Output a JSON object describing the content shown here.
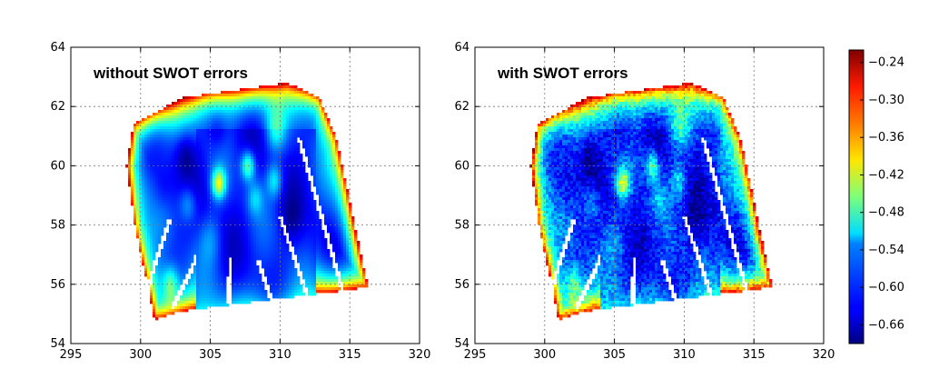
{
  "chart_data": [
    {
      "type": "heatmap",
      "title": "without SWOT errors",
      "noise": false,
      "xlim": [
        295,
        320
      ],
      "ylim": [
        54,
        64
      ],
      "xticks": [
        295,
        300,
        305,
        310,
        315,
        320
      ],
      "yticks": [
        54,
        56,
        58,
        60,
        62,
        64
      ],
      "grid": true,
      "value_range": [
        -0.69,
        -0.22
      ]
    },
    {
      "type": "heatmap",
      "title": "with SWOT errors",
      "noise": true,
      "xlim": [
        295,
        320
      ],
      "ylim": [
        54,
        64
      ],
      "xticks": [
        295,
        300,
        305,
        310,
        315,
        320
      ],
      "yticks": [
        54,
        56,
        58,
        60,
        62,
        64
      ],
      "grid": true,
      "value_range": [
        -0.69,
        -0.22
      ]
    }
  ],
  "colorbar": {
    "colormap": "jet",
    "min": -0.69,
    "max": -0.22,
    "ticks": [
      "−0.24",
      "−0.30",
      "−0.36",
      "−0.42",
      "−0.48",
      "−0.54",
      "−0.60",
      "−0.66"
    ],
    "tick_values": [
      -0.24,
      -0.3,
      -0.36,
      -0.42,
      -0.48,
      -0.54,
      -0.6,
      -0.66
    ]
  },
  "data_region": {
    "polygon": [
      [
        299.0,
        60.0
      ],
      [
        299.5,
        61.4
      ],
      [
        303.0,
        62.3
      ],
      [
        310.5,
        62.8
      ],
      [
        312.8,
        62.3
      ],
      [
        314.0,
        61.0
      ],
      [
        316.3,
        55.9
      ],
      [
        313.0,
        55.7
      ],
      [
        303.0,
        55.1
      ],
      [
        301.0,
        54.8
      ],
      [
        299.6,
        58.0
      ]
    ],
    "gaps": [
      [
        [
          302.1,
          58.2
        ],
        [
          300.3,
          55.6
        ]
      ],
      [
        [
          304.0,
          56.9
        ],
        [
          302.3,
          55.2
        ]
      ],
      [
        [
          306.4,
          56.9
        ],
        [
          306.3,
          55.3
        ]
      ],
      [
        [
          308.4,
          56.8
        ],
        [
          309.5,
          55.3
        ]
      ],
      [
        [
          310.0,
          58.3
        ],
        [
          312.0,
          55.5
        ]
      ],
      [
        [
          311.3,
          61.0
        ],
        [
          314.6,
          55.6
        ]
      ]
    ]
  }
}
